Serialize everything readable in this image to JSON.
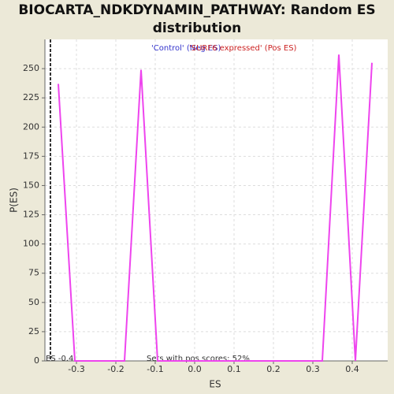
{
  "chart_data": {
    "type": "line",
    "title": "BIOCARTA_NDKDYNAMIN_PATHWAY: Random ES distribution",
    "legend": [
      {
        "text": "'Control' (Neg ES)",
        "color": "#3333cc"
      },
      {
        "text": "'SURF6 expressed' (Pos ES)",
        "color": "#cc2222"
      }
    ],
    "xlabel": "ES",
    "ylabel": "P(ES)",
    "series": [
      {
        "name": "Random ES",
        "color": "#ee44ee",
        "x": [
          -0.346,
          -0.304,
          -0.178,
          -0.136,
          -0.094,
          0.324,
          0.366,
          0.408,
          0.45
        ],
        "values": [
          237,
          0,
          0,
          249,
          0,
          0,
          262,
          0,
          255
        ]
      }
    ],
    "xlim": [
      -0.38,
      0.49
    ],
    "ylim": [
      0,
      275
    ],
    "xticks": [
      -0.3,
      -0.2,
      -0.1,
      {
        "value": 0,
        "label": "0.0"
      },
      0.1,
      0.2,
      0.3,
      0.4
    ],
    "yticks": [
      0,
      25,
      50,
      75,
      100,
      125,
      150,
      175,
      200,
      225,
      250
    ],
    "grid": true,
    "es_marker": {
      "x": -0.366,
      "label": "ES -0.4"
    },
    "annotation": "Sets with pos scores: 52%"
  }
}
